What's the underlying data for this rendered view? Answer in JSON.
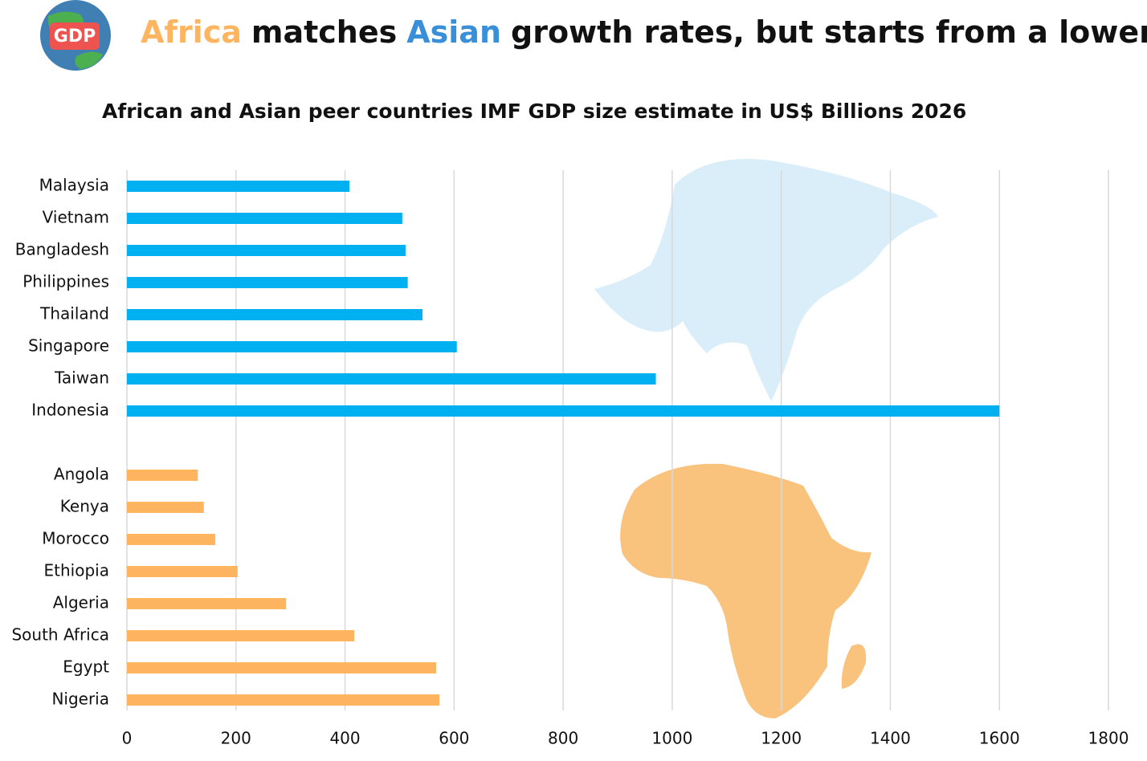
{
  "icon_label": "GDP",
  "chart_data": {
    "type": "bar",
    "orientation": "horizontal",
    "title_parts": [
      {
        "text": "Africa",
        "color": "#ffb55f"
      },
      {
        "text": "matches",
        "color": "#111111"
      },
      {
        "text": "Asian",
        "color": "#3a8fd9"
      },
      {
        "text": "growth rates, but starts from a lower base",
        "color": "#111111"
      }
    ],
    "subtitle": "African and Asian peer countries IMF GDP size estimate in US$ Billions 2026",
    "categories": [
      "Malaysia",
      "Vietnam",
      "Bangladesh",
      "Philippines",
      "Thailand",
      "Singapore",
      "Taiwan",
      "Indonesia",
      null,
      "Angola",
      "Kenya",
      "Morocco",
      "Ethiopia",
      "Algeria",
      "South Africa",
      "Egypt",
      "Nigeria"
    ],
    "values": [
      408,
      505,
      511,
      515,
      542,
      605,
      970,
      1600,
      null,
      130,
      141,
      162,
      203,
      292,
      417,
      567,
      573
    ],
    "colors": [
      "#00b0f0",
      "#00b0f0",
      "#00b0f0",
      "#00b0f0",
      "#00b0f0",
      "#00b0f0",
      "#00b0f0",
      "#00b0f0",
      null,
      "#ffb55f",
      "#ffb55f",
      "#ffb55f",
      "#ffb55f",
      "#ffb55f",
      "#ffb55f",
      "#ffb55f",
      "#ffb55f"
    ],
    "xlim": [
      0,
      1800
    ],
    "xticks": [
      0,
      200,
      400,
      600,
      800,
      1000,
      1200,
      1400,
      1600,
      1800
    ],
    "grid": true
  }
}
